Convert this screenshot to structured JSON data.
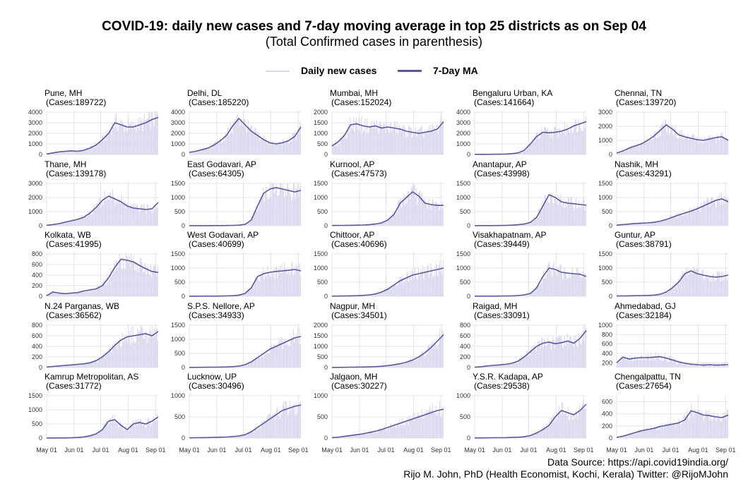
{
  "title": "COVID-19: daily new cases and 7-day moving average in top 25 districts as on Sep 04",
  "subtitle": "(Total Confirmed cases in parenthesis)",
  "legend": {
    "daily_label": "Daily new cases",
    "ma_label": "7-Day MA",
    "daily_color": "#d9d9ee",
    "ma_color": "#5a579a"
  },
  "source": {
    "line1": "Data Source: https://api.covid19india.org/",
    "line2": "Rijo M. John, PhD (Health Economist, Kochi, Kerala) Twitter: @RijoMJohn"
  },
  "chart_data": {
    "type": "line",
    "x_dates": [
      "May 01",
      "May 08",
      "May 15",
      "May 22",
      "May 29",
      "Jun 05",
      "Jun 12",
      "Jun 19",
      "Jun 26",
      "Jul 03",
      "Jul 10",
      "Jul 17",
      "Jul 24",
      "Jul 31",
      "Aug 07",
      "Aug 14",
      "Aug 21",
      "Aug 28",
      "Sep 04"
    ],
    "x_tick_labels": [
      "May 01",
      "Jun 01",
      "Jul 01",
      "Aug 01",
      "Sep 01"
    ],
    "grid": true,
    "legend_position": "top",
    "panels": [
      {
        "name": "Pune, MH",
        "cases_label": "(Cases:189722)",
        "ylim": [
          0,
          4000
        ],
        "yticks": [
          0,
          1000,
          2000,
          3000,
          4000
        ],
        "ma": [
          50,
          150,
          250,
          300,
          350,
          300,
          400,
          600,
          900,
          1400,
          2000,
          3000,
          2800,
          2600,
          2600,
          2800,
          3000,
          3300,
          3500
        ]
      },
      {
        "name": "Delhi, DL",
        "cases_label": "(Cases:185220)",
        "ylim": [
          0,
          4000
        ],
        "yticks": [
          0,
          1000,
          2000,
          3000,
          4000
        ],
        "ma": [
          200,
          300,
          450,
          600,
          900,
          1300,
          1800,
          2700,
          3400,
          2800,
          2200,
          1800,
          1400,
          1100,
          1000,
          1100,
          1300,
          1700,
          2600
        ]
      },
      {
        "name": "Mumbai, MH",
        "cases_label": "(Cases:152024)",
        "ylim": [
          0,
          2000
        ],
        "yticks": [
          0,
          500,
          1000,
          1500,
          2000
        ],
        "ma": [
          400,
          600,
          900,
          1400,
          1450,
          1350,
          1300,
          1350,
          1250,
          1300,
          1250,
          1200,
          1100,
          1050,
          1000,
          1050,
          1100,
          1200,
          1550
        ]
      },
      {
        "name": "Bengaluru Urban, KA",
        "cases_label": "(Cases:141664)",
        "ylim": [
          0,
          4000
        ],
        "yticks": [
          0,
          1000,
          2000,
          3000,
          4000
        ],
        "ma": [
          10,
          10,
          15,
          20,
          25,
          40,
          80,
          150,
          400,
          1000,
          1700,
          2100,
          2050,
          2100,
          2200,
          2400,
          2700,
          2900,
          3100
        ]
      },
      {
        "name": "Chennai, TN",
        "cases_label": "(Cases:139720)",
        "ylim": [
          0,
          3000
        ],
        "yticks": [
          0,
          1000,
          2000,
          3000
        ],
        "ma": [
          100,
          250,
          450,
          600,
          750,
          1000,
          1300,
          1700,
          2100,
          1800,
          1400,
          1250,
          1150,
          1050,
          1000,
          1100,
          1200,
          1250,
          1000
        ]
      },
      {
        "name": "Thane, MH",
        "cases_label": "(Cases:139178)",
        "ylim": [
          0,
          3000
        ],
        "yticks": [
          0,
          1000,
          2000,
          3000
        ],
        "ma": [
          30,
          80,
          150,
          250,
          350,
          450,
          600,
          900,
          1300,
          1800,
          2100,
          1900,
          1700,
          1400,
          1250,
          1200,
          1150,
          1200,
          1650
        ]
      },
      {
        "name": "East Godavari, AP",
        "cases_label": "(Cases:64305)",
        "ylim": [
          0,
          1500
        ],
        "yticks": [
          0,
          500,
          1000,
          1500
        ],
        "ma": [
          2,
          2,
          3,
          3,
          4,
          6,
          8,
          12,
          20,
          50,
          200,
          700,
          1150,
          1300,
          1350,
          1300,
          1250,
          1200,
          1250
        ]
      },
      {
        "name": "Kurnool, AP",
        "cases_label": "(Cases:47573)",
        "ylim": [
          0,
          1500
        ],
        "yticks": [
          0,
          500,
          1000,
          1500
        ],
        "ma": [
          8,
          10,
          12,
          15,
          20,
          25,
          35,
          60,
          100,
          200,
          400,
          800,
          1000,
          1200,
          1050,
          800,
          750,
          720,
          720
        ]
      },
      {
        "name": "Anantapur, AP",
        "cases_label": "(Cases:43998)",
        "ylim": [
          0,
          1500
        ],
        "yticks": [
          0,
          500,
          1000,
          1500
        ],
        "ma": [
          3,
          4,
          5,
          6,
          8,
          12,
          20,
          35,
          60,
          120,
          300,
          700,
          1100,
          1000,
          850,
          800,
          780,
          750,
          730
        ]
      },
      {
        "name": "Nashik, MH",
        "cases_label": "(Cases:43291)",
        "ylim": [
          0,
          1500
        ],
        "yticks": [
          0,
          500,
          1000,
          1500
        ],
        "ma": [
          20,
          40,
          60,
          80,
          90,
          100,
          120,
          160,
          220,
          300,
          380,
          450,
          520,
          600,
          700,
          800,
          900,
          950,
          850
        ]
      },
      {
        "name": "Kolkata, WB",
        "cases_label": "(Cases:41995)",
        "ylim": [
          0,
          800
        ],
        "yticks": [
          0,
          200,
          400,
          600,
          800
        ],
        "ma": [
          10,
          80,
          60,
          50,
          60,
          70,
          100,
          120,
          140,
          200,
          350,
          550,
          700,
          680,
          650,
          580,
          520,
          470,
          450
        ]
      },
      {
        "name": "West Godavari, AP",
        "cases_label": "(Cases:40699)",
        "ylim": [
          0,
          1500
        ],
        "yticks": [
          0,
          500,
          1000,
          1500
        ],
        "ma": [
          2,
          3,
          4,
          5,
          6,
          8,
          12,
          20,
          40,
          100,
          300,
          700,
          800,
          850,
          880,
          900,
          920,
          950,
          900
        ]
      },
      {
        "name": "Chittoor, AP",
        "cases_label": "(Cases:40696)",
        "ylim": [
          0,
          1500
        ],
        "yticks": [
          0,
          500,
          1000,
          1500
        ],
        "ma": [
          5,
          8,
          10,
          15,
          20,
          30,
          50,
          80,
          150,
          250,
          400,
          550,
          650,
          750,
          800,
          850,
          900,
          950,
          1000
        ]
      },
      {
        "name": "Visakhapatnam, AP",
        "cases_label": "(Cases:39449)",
        "ylim": [
          0,
          1500
        ],
        "yticks": [
          0,
          500,
          1000,
          1500
        ],
        "ma": [
          3,
          4,
          5,
          6,
          8,
          10,
          15,
          25,
          50,
          100,
          300,
          700,
          1000,
          950,
          850,
          820,
          800,
          780,
          700
        ]
      },
      {
        "name": "Guntur, AP",
        "cases_label": "(Cases:38791)",
        "ylim": [
          0,
          1500
        ],
        "yticks": [
          0,
          500,
          1000,
          1500
        ],
        "ma": [
          10,
          12,
          15,
          20,
          25,
          30,
          40,
          70,
          150,
          300,
          500,
          800,
          900,
          800,
          750,
          700,
          680,
          700,
          750
        ]
      },
      {
        "name": "N.24 Parganas, WB",
        "cases_label": "(Cases:36562)",
        "ylim": [
          0,
          800
        ],
        "yticks": [
          0,
          200,
          400,
          600,
          800
        ],
        "ma": [
          10,
          20,
          30,
          40,
          50,
          60,
          70,
          90,
          130,
          200,
          300,
          420,
          520,
          580,
          600,
          620,
          640,
          600,
          680
        ]
      },
      {
        "name": "S.P.S. Nellore, AP",
        "cases_label": "(Cases:34933)",
        "ylim": [
          0,
          1500
        ],
        "yticks": [
          0,
          500,
          1000,
          1500
        ],
        "ma": [
          5,
          6,
          8,
          10,
          12,
          15,
          20,
          30,
          50,
          100,
          200,
          350,
          500,
          650,
          750,
          850,
          950,
          1050,
          1100
        ]
      },
      {
        "name": "Nagpur, MH",
        "cases_label": "(Cases:34501)",
        "ylim": [
          0,
          2000
        ],
        "yticks": [
          0,
          500,
          1000,
          1500,
          2000
        ],
        "ma": [
          5,
          8,
          10,
          15,
          20,
          25,
          30,
          40,
          60,
          90,
          130,
          180,
          250,
          350,
          500,
          700,
          950,
          1250,
          1550
        ]
      },
      {
        "name": "Raigad, MH",
        "cases_label": "(Cases:33091)",
        "ylim": [
          0,
          800
        ],
        "yticks": [
          0,
          200,
          400,
          600,
          800
        ],
        "ma": [
          5,
          15,
          30,
          40,
          50,
          60,
          80,
          120,
          200,
          300,
          400,
          460,
          480,
          450,
          470,
          500,
          460,
          550,
          700
        ]
      },
      {
        "name": "Ahmedabad, GJ",
        "cases_label": "(Cases:32184)",
        "ylim": [
          100,
          1000
        ],
        "yticks": [
          200,
          400,
          600,
          800,
          1000
        ],
        "ma": [
          200,
          320,
          280,
          300,
          310,
          310,
          320,
          330,
          300,
          260,
          220,
          190,
          170,
          160,
          150,
          160,
          150,
          155,
          160
        ]
      },
      {
        "name": "Kamrup Metropolitan, AS",
        "cases_label": "(Cases:31772)",
        "ylim": [
          0,
          1500
        ],
        "yticks": [
          0,
          500,
          1000,
          1500
        ],
        "ma": [
          2,
          3,
          4,
          6,
          10,
          20,
          40,
          80,
          150,
          300,
          600,
          650,
          450,
          300,
          500,
          550,
          500,
          600,
          750
        ]
      },
      {
        "name": "Lucknow, UP",
        "cases_label": "(Cases:30496)",
        "ylim": [
          0,
          1000
        ],
        "yticks": [
          0,
          500,
          1000
        ],
        "ma": [
          5,
          8,
          10,
          12,
          15,
          20,
          25,
          35,
          50,
          80,
          150,
          250,
          350,
          450,
          550,
          650,
          700,
          750,
          780
        ]
      },
      {
        "name": "Jalgaon, MH",
        "cases_label": "(Cases:30227)",
        "ylim": [
          0,
          1000
        ],
        "yticks": [
          0,
          500,
          1000
        ],
        "ma": [
          10,
          20,
          40,
          60,
          80,
          100,
          130,
          160,
          200,
          250,
          300,
          350,
          400,
          450,
          500,
          550,
          600,
          650,
          680
        ]
      },
      {
        "name": "Y.S.R. Kadapa, AP",
        "cases_label": "(Cases:29538)",
        "ylim": [
          0,
          1000
        ],
        "yticks": [
          0,
          500,
          1000
        ],
        "ma": [
          3,
          4,
          5,
          6,
          8,
          10,
          15,
          20,
          30,
          60,
          120,
          200,
          300,
          500,
          650,
          600,
          550,
          650,
          800
        ]
      },
      {
        "name": "Chengalpattu, TN",
        "cases_label": "(Cases:27654)",
        "ylim": [
          0,
          700
        ],
        "yticks": [
          0,
          200,
          400,
          600
        ],
        "ma": [
          10,
          30,
          60,
          90,
          120,
          140,
          160,
          190,
          210,
          230,
          250,
          300,
          450,
          420,
          380,
          370,
          350,
          340,
          380
        ]
      }
    ]
  }
}
